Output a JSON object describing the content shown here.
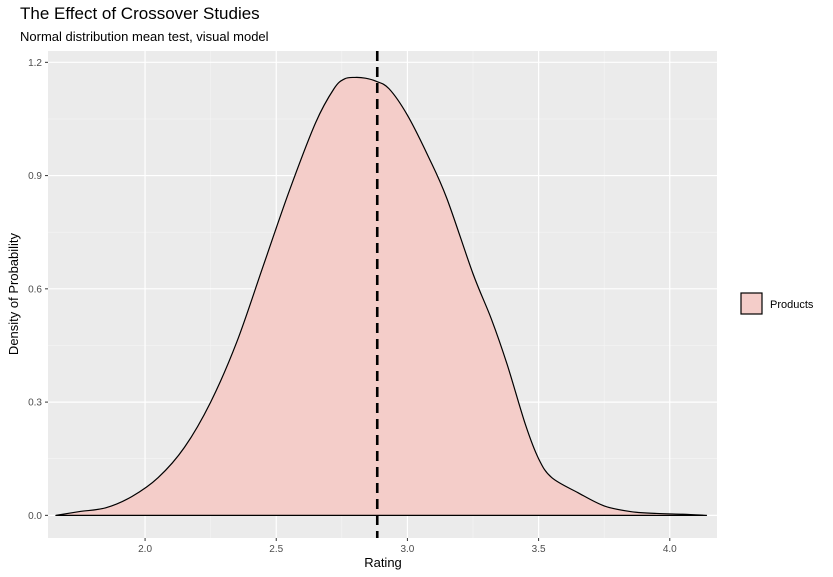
{
  "chart_data": {
    "type": "area",
    "title": "The Effect of Crossover Studies",
    "subtitle": "Normal distribution mean test, visual model",
    "xlabel": "Rating",
    "ylabel": "Density of Probability",
    "xlim": [
      1.63,
      4.18
    ],
    "ylim": [
      -0.06,
      1.23
    ],
    "x_ticks": [
      2.0,
      2.5,
      3.0,
      3.5,
      4.0
    ],
    "x_tick_labels": [
      "2.0",
      "2.5",
      "3.0",
      "3.5",
      "4.0"
    ],
    "y_ticks": [
      0.0,
      0.3,
      0.6,
      0.9,
      1.2
    ],
    "y_tick_labels": [
      "0.0",
      "0.3",
      "0.6",
      "0.9",
      "1.2"
    ],
    "grid": true,
    "legend_position": "right",
    "series": [
      {
        "name": "Products",
        "fill_color": "#f4cdc9",
        "line_color": "#000000",
        "x": [
          1.66,
          1.75,
          1.85,
          1.95,
          2.05,
          2.15,
          2.25,
          2.35,
          2.45,
          2.55,
          2.65,
          2.72,
          2.76,
          2.8,
          2.84,
          2.88,
          2.93,
          3.0,
          3.08,
          3.15,
          3.25,
          3.32,
          3.38,
          3.45,
          3.5,
          3.55,
          3.65,
          3.75,
          3.85,
          3.95,
          4.05,
          4.14
        ],
        "y": [
          0.0,
          0.01,
          0.02,
          0.05,
          0.1,
          0.18,
          0.3,
          0.46,
          0.66,
          0.86,
          1.04,
          1.13,
          1.156,
          1.16,
          1.158,
          1.15,
          1.13,
          1.06,
          0.95,
          0.84,
          0.64,
          0.52,
          0.4,
          0.24,
          0.15,
          0.1,
          0.06,
          0.025,
          0.01,
          0.005,
          0.003,
          0.0
        ]
      }
    ],
    "reference_line": {
      "x": 2.885,
      "style": "dashed",
      "color": "#000000"
    },
    "colors": {
      "panel_background": "#ebebeb",
      "grid_major": "#ffffff",
      "grid_minor": "#f5f5f5"
    }
  }
}
